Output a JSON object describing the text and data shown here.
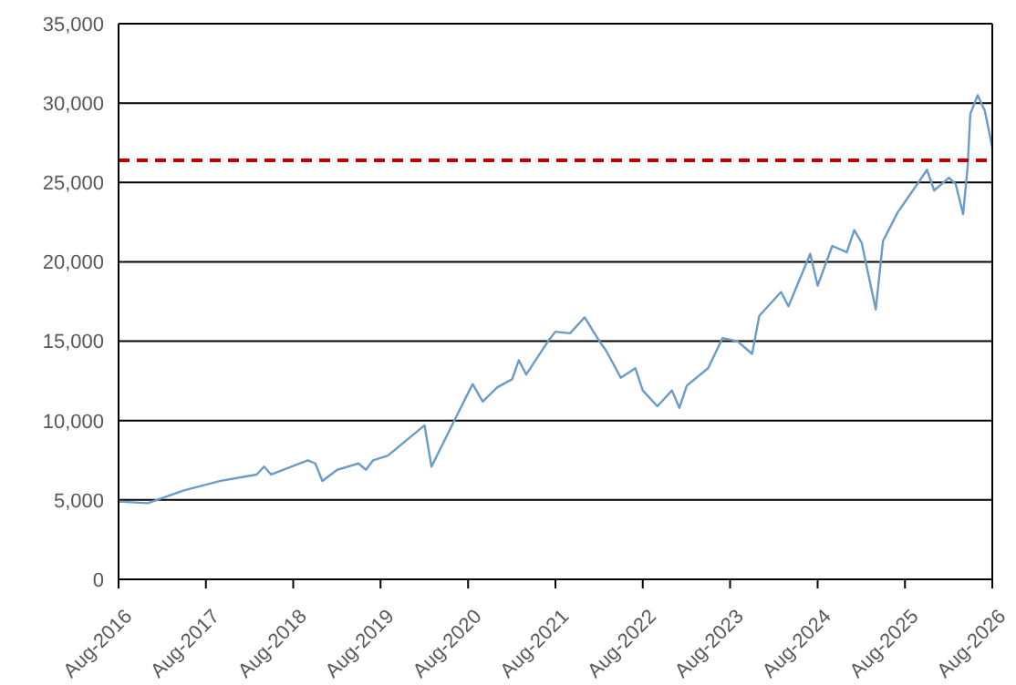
{
  "chart_data": {
    "type": "line",
    "x": [
      "2016-08",
      "2016-12",
      "2017-05",
      "2017-10",
      "2018-03",
      "2018-04",
      "2018-05",
      "2018-10",
      "2018-11",
      "2018-12",
      "2019-02",
      "2019-05",
      "2019-06",
      "2019-07",
      "2019-09",
      "2020-02",
      "2020-03",
      "2020-06",
      "2020-08-20",
      "2020-10",
      "2020-12",
      "2021-02",
      "2021-03",
      "2021-04",
      "2021-07",
      "2021-08",
      "2021-10",
      "2021-12",
      "2022-02",
      "2022-03",
      "2022-05",
      "2022-07",
      "2022-08",
      "2022-10",
      "2022-12",
      "2023-01",
      "2023-02",
      "2023-05",
      "2023-07",
      "2023-09",
      "2023-11",
      "2023-12",
      "2024-03",
      "2024-04",
      "2024-07",
      "2024-08",
      "2024-10",
      "2024-12",
      "2025-01",
      "2025-02",
      "2025-04",
      "2025-05",
      "2025-07",
      "2025-10",
      "2025-11",
      "2025-12",
      "2026-02",
      "2026-03",
      "2026-04",
      "2026-04-20",
      "2026-05",
      "2026-06",
      "2026-07",
      "2026-08"
    ],
    "series": [
      {
        "color": "#6b9bc8",
        "values": [
          4900,
          4800,
          5600,
          6200,
          6600,
          7100,
          6600,
          7500,
          7300,
          6200,
          6900,
          7300,
          6900,
          7500,
          7800,
          9700,
          7100,
          9900,
          12300,
          11200,
          12100,
          12600,
          13800,
          12900,
          15000,
          15600,
          15500,
          16500,
          15000,
          14400,
          12700,
          13300,
          11900,
          10900,
          11900,
          10800,
          12200,
          13300,
          15200,
          15000,
          14200,
          16600,
          18100,
          17200,
          20500,
          18500,
          21000,
          20600,
          22000,
          21200,
          17000,
          21300,
          23100,
          25100,
          25800,
          24500,
          25300,
          24900,
          23000,
          26000,
          29300,
          30500,
          29500,
          27200
        ]
      }
    ],
    "xlim": [
      "2016-08",
      "2026-08"
    ],
    "xticks": [
      {
        "value": "2016-08",
        "label": "Aug-2016"
      },
      {
        "value": "2017-08",
        "label": "Aug-2017"
      },
      {
        "value": "2018-08",
        "label": "Aug-2018"
      },
      {
        "value": "2019-08",
        "label": "Aug-2019"
      },
      {
        "value": "2020-08",
        "label": "Aug-2020"
      },
      {
        "value": "2021-08",
        "label": "Aug-2021"
      },
      {
        "value": "2022-08",
        "label": "Aug-2022"
      },
      {
        "value": "2023-08",
        "label": "Aug-2023"
      },
      {
        "value": "2024-08",
        "label": "Aug-2024"
      },
      {
        "value": "2025-08",
        "label": "Aug-2025"
      },
      {
        "value": "2026-08",
        "label": "Aug-2026"
      }
    ],
    "ylim": [
      0,
      35000
    ],
    "yticks": [
      {
        "value": 0,
        "label": "0"
      },
      {
        "value": 5000,
        "label": "5,000"
      },
      {
        "value": 10000,
        "label": "10,000"
      },
      {
        "value": 15000,
        "label": "15,000"
      },
      {
        "value": 20000,
        "label": "20,000"
      },
      {
        "value": 25000,
        "label": "25,000"
      },
      {
        "value": 30000,
        "label": "30,000"
      },
      {
        "value": 35000,
        "label": "35,000"
      }
    ],
    "grid": "y",
    "legend": false,
    "marker": "none",
    "line_style": "solid",
    "ref_lines": [
      {
        "axis": "y",
        "value": 26400,
        "color": "#c00000",
        "line_style": "dashed"
      }
    ]
  }
}
